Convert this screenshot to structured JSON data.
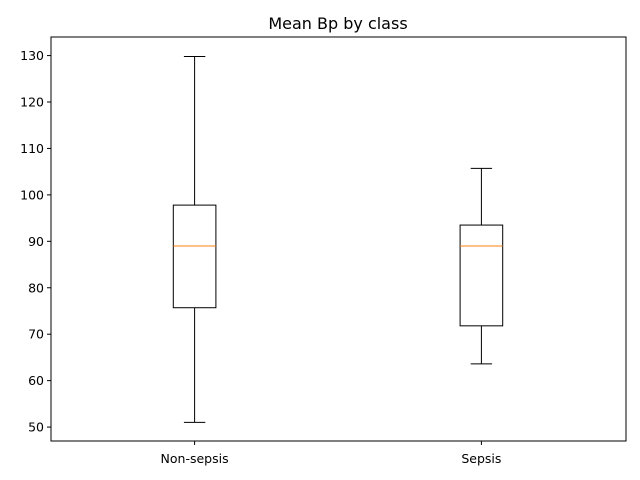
{
  "chart_data": {
    "type": "box",
    "title": "Mean Bp by class",
    "xlabel": "",
    "ylabel": "",
    "ylim": [
      47,
      134
    ],
    "yticks": [
      50,
      60,
      70,
      80,
      90,
      100,
      110,
      120,
      130
    ],
    "categories": [
      "Non-sepsis",
      "Sepsis"
    ],
    "boxes": [
      {
        "category": "Non-sepsis",
        "whislo": 51,
        "q1": 75.7,
        "median": 89,
        "q3": 97.8,
        "whishi": 129.8
      },
      {
        "category": "Sepsis",
        "whislo": 63.6,
        "q1": 71.8,
        "median": 89,
        "q3": 93.5,
        "whishi": 105.7
      }
    ],
    "grid": false,
    "colors": {
      "box": "#000000",
      "median": "#ff7f0e",
      "axes": "#000000",
      "background": "#ffffff"
    }
  }
}
